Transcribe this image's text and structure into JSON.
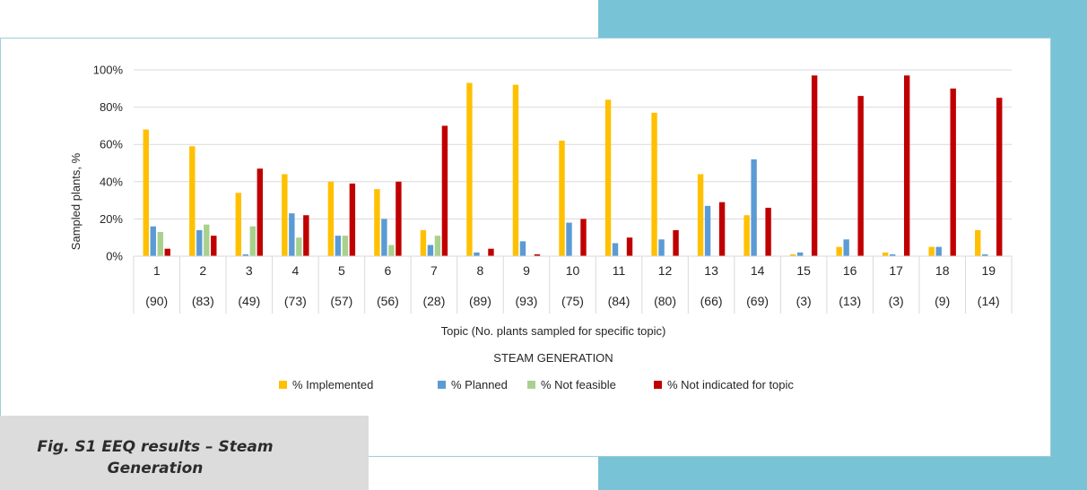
{
  "caption": "Fig. S1 EEQ results – Steam Generation",
  "chart_data": {
    "type": "bar",
    "title": "",
    "xlabel": "Topic (No. plants sampled for specific topic)",
    "subtitle": "STEAM GENERATION",
    "ylabel": "Sampled plants, %",
    "ylim": [
      0,
      100
    ],
    "yticks": [
      "0%",
      "20%",
      "40%",
      "60%",
      "80%",
      "100%"
    ],
    "grid": true,
    "legend_position": "bottom",
    "categories": [
      "1",
      "2",
      "3",
      "4",
      "5",
      "6",
      "7",
      "8",
      "9",
      "10",
      "11",
      "12",
      "13",
      "14",
      "15",
      "16",
      "17",
      "18",
      "19"
    ],
    "sample_counts": [
      "(90)",
      "(83)",
      "(49)",
      "(73)",
      "(57)",
      "(56)",
      "(28)",
      "(89)",
      "(93)",
      "(75)",
      "(84)",
      "(80)",
      "(66)",
      "(69)",
      "(3)",
      "(13)",
      "(3)",
      "(9)",
      "(14)"
    ],
    "series": [
      {
        "name": "% Implemented",
        "color": "#ffc000",
        "values": [
          68,
          59,
          34,
          44,
          40,
          36,
          14,
          93,
          92,
          62,
          84,
          77,
          44,
          22,
          1,
          5,
          2,
          5,
          14
        ]
      },
      {
        "name": "% Planned",
        "color": "#5b9bd5",
        "values": [
          16,
          14,
          1,
          23,
          11,
          20,
          6,
          2,
          8,
          18,
          7,
          9,
          27,
          52,
          2,
          9,
          1,
          5,
          1
        ]
      },
      {
        "name": "% Not feasible",
        "color": "#a9d18e",
        "values": [
          13,
          17,
          16,
          10,
          11,
          6,
          11,
          0,
          0,
          0,
          0,
          0,
          0,
          0,
          0,
          0,
          0,
          0,
          0
        ]
      },
      {
        "name": "% Not indicated for topic",
        "color": "#c00000",
        "values": [
          4,
          11,
          47,
          22,
          39,
          40,
          70,
          4,
          1,
          20,
          10,
          14,
          29,
          26,
          97,
          86,
          97,
          90,
          85
        ]
      }
    ]
  }
}
